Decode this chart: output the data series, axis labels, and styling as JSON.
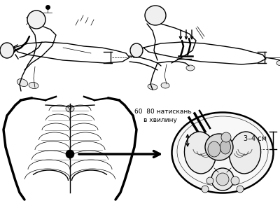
{
  "bg_color": "#ffffff",
  "text1": "60  80 натискань",
  "text2": "в хвилину",
  "text3": "3–4 см",
  "figsize": [
    4.0,
    2.87
  ],
  "dpi": 100
}
